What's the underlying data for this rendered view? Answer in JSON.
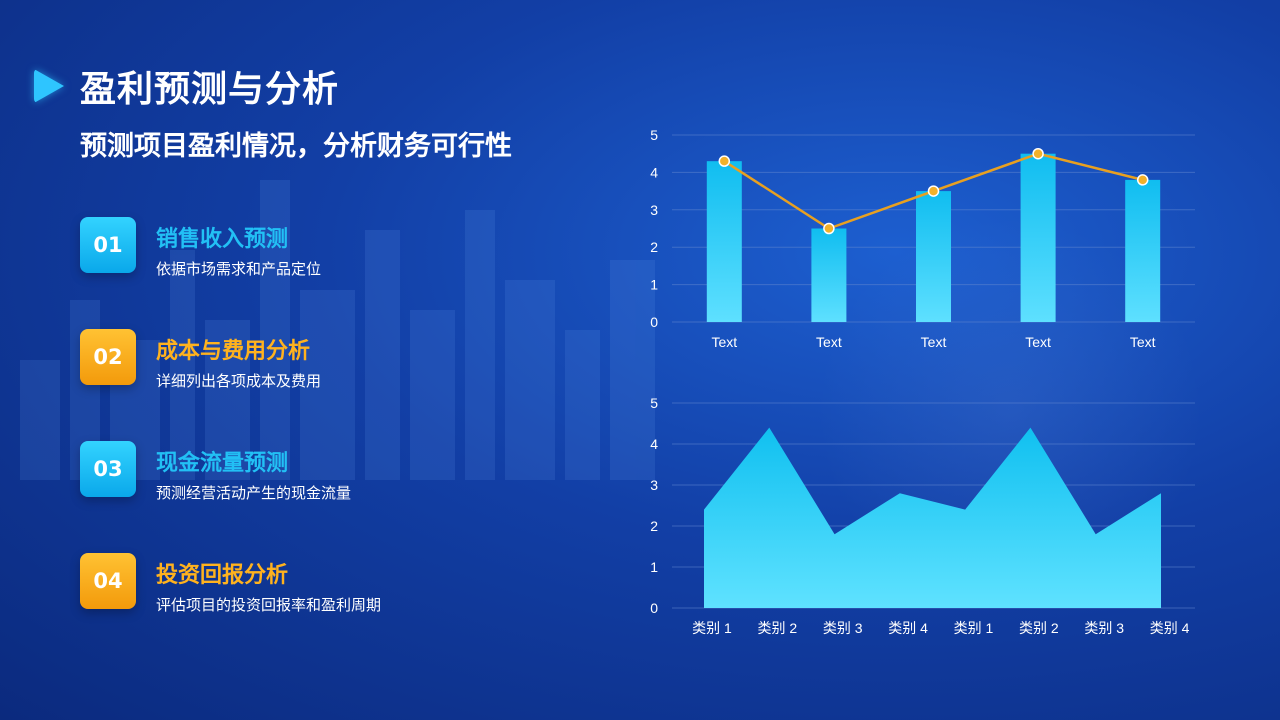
{
  "header": {
    "title": "盈利预测与分析",
    "subtitle": "预测项目盈利情况，分析财务可行性"
  },
  "items": [
    {
      "number": "01",
      "title": "销售收入预测",
      "desc": "依据市场需求和产品定位",
      "color": "blue"
    },
    {
      "number": "02",
      "title": "成本与费用分析",
      "desc": "详细列出各项成本及费用",
      "color": "orange"
    },
    {
      "number": "03",
      "title": "现金流量预测",
      "desc": "预测经营活动产生的现金流量",
      "color": "blue"
    },
    {
      "number": "04",
      "title": "投资回报分析",
      "desc": "评估项目的投资回报率和盈利周期",
      "color": "orange"
    }
  ],
  "colors": {
    "accent_blue": "#22c0f5",
    "accent_orange": "#ffb21e",
    "bar": "#1fc3f2",
    "line": "#e8a020"
  },
  "chart_data": [
    {
      "type": "bar",
      "categories": [
        "Text",
        "Text",
        "Text",
        "Text",
        "Text"
      ],
      "series": [
        {
          "values": [
            4.3,
            2.5,
            3.5,
            4.5,
            3.8
          ]
        }
      ],
      "line_overlay": [
        4.3,
        2.5,
        3.5,
        4.5,
        3.8
      ],
      "ylim": [
        0,
        5
      ],
      "yticks": [
        0,
        1,
        2,
        3,
        4,
        5
      ],
      "grid": true
    },
    {
      "type": "area",
      "categories": [
        "类别 1",
        "类别 2",
        "类别 3",
        "类别 4",
        "类别 1",
        "类别 2",
        "类别 3",
        "类别 4"
      ],
      "series": [
        {
          "values": [
            2.4,
            4.4,
            1.8,
            2.8,
            2.4,
            4.4,
            1.8,
            2.8
          ]
        }
      ],
      "ylim": [
        0,
        5
      ],
      "yticks": [
        0,
        1,
        2,
        3,
        4,
        5
      ],
      "grid": true
    }
  ]
}
